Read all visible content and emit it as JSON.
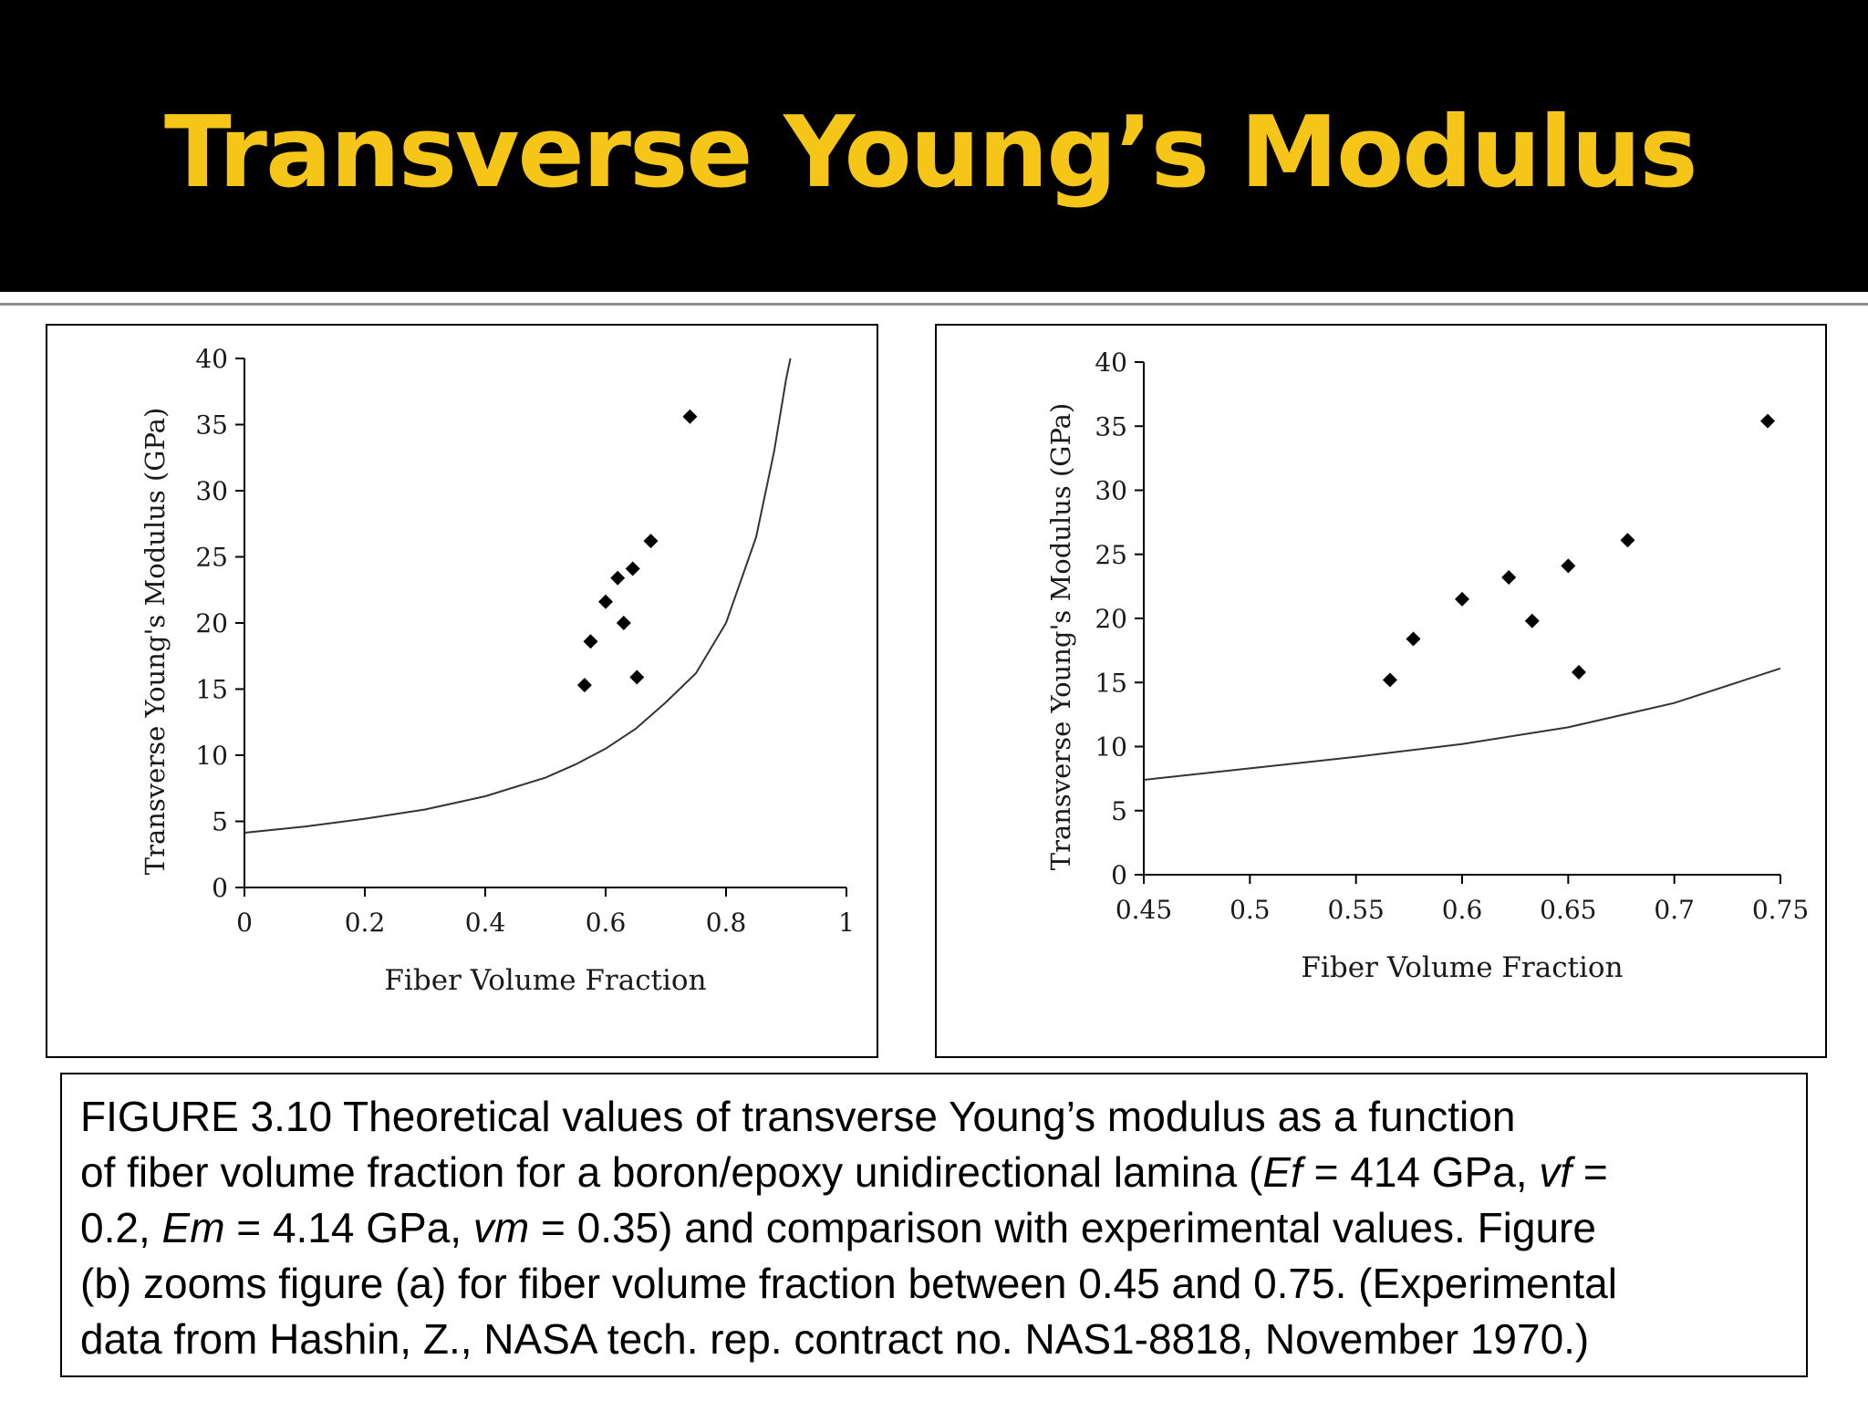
{
  "slide": {
    "title": "Transverse Young’s Modulus",
    "title_color": "#f5c518",
    "header_background": "#000000"
  },
  "caption": {
    "line1": "FIGURE 3.10 Theoretical values of transverse Young’s modulus as a function",
    "line2_a": "of fiber volume fraction for a boron/epoxy unidirectional lamina (",
    "line2_ef": "Ef",
    "line2_b": " = 414 GPa, ",
    "line2_vf": "vf",
    "line2_c": " =",
    "line3_a": "0.2, ",
    "line3_em": "Em",
    "line3_b": " = 4.14 GPa, ",
    "line3_vm": "vm",
    "line3_c": " = 0.35) and comparison with experimental values. Figure",
    "line4": "(b) zooms figure (a) for fiber volume fraction between 0.45 and 0.75. (Experimental",
    "line5": "data from Hashin, Z., NASA tech. rep. contract no. NAS1-8818, November 1970.)"
  },
  "chart_data": [
    {
      "type": "scatter",
      "xlabel": "Fiber Volume Fraction",
      "ylabel": "Transverse Young's Modulus (GPa)",
      "xlim": [
        0,
        1
      ],
      "ylim": [
        0,
        40
      ],
      "xticks": [
        "0",
        "0.2",
        "0.4",
        "0.6",
        "0.8",
        "1"
      ],
      "yticks": [
        "0",
        "5",
        "10",
        "15",
        "20",
        "25",
        "30",
        "35",
        "40"
      ],
      "grid": false,
      "series": [
        {
          "kind": "line",
          "color": "#333333",
          "x": [
            0,
            0.1,
            0.2,
            0.3,
            0.4,
            0.5,
            0.55,
            0.6,
            0.65,
            0.7,
            0.75,
            0.8,
            0.85,
            0.88,
            0.9,
            0.907
          ],
          "y": [
            4.14,
            4.6,
            5.2,
            5.9,
            6.9,
            8.3,
            9.3,
            10.5,
            12.0,
            14.0,
            16.2,
            20.0,
            26.5,
            33.0,
            38.5,
            40.0
          ]
        },
        {
          "kind": "points",
          "marker": "diamond",
          "color": "#000000",
          "x": [
            0.565,
            0.575,
            0.6,
            0.62,
            0.63,
            0.645,
            0.652,
            0.675,
            0.74
          ],
          "y": [
            15.3,
            18.6,
            21.6,
            23.4,
            20.0,
            24.1,
            15.9,
            26.2,
            35.6
          ]
        }
      ]
    },
    {
      "type": "scatter",
      "xlabel": "Fiber Volume Fraction",
      "ylabel": "Transverse Young's Modulus (GPa)",
      "xlim": [
        0.45,
        0.75
      ],
      "ylim": [
        0,
        40
      ],
      "xticks": [
        "0.45",
        "0.5",
        "0.55",
        "0.6",
        "0.65",
        "0.7",
        "0.75"
      ],
      "yticks": [
        "0",
        "5",
        "10",
        "15",
        "20",
        "25",
        "30",
        "35",
        "40"
      ],
      "grid": false,
      "series": [
        {
          "kind": "line",
          "color": "#333333",
          "x": [
            0.45,
            0.5,
            0.55,
            0.6,
            0.65,
            0.7,
            0.75
          ],
          "y": [
            7.4,
            8.3,
            9.2,
            10.2,
            11.5,
            13.4,
            16.1
          ]
        },
        {
          "kind": "points",
          "marker": "diamond",
          "color": "#000000",
          "x": [
            0.566,
            0.577,
            0.6,
            0.622,
            0.633,
            0.65,
            0.655,
            0.678,
            0.744
          ],
          "y": [
            15.2,
            18.4,
            21.5,
            23.2,
            19.8,
            24.1,
            15.8,
            26.1,
            35.4
          ]
        }
      ]
    }
  ]
}
